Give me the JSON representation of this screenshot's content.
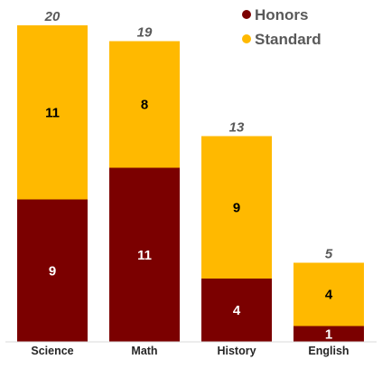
{
  "chart_data": {
    "type": "bar",
    "stacked": true,
    "categories": [
      "Science",
      "Math",
      "History",
      "English"
    ],
    "series": [
      {
        "name": "Honors",
        "values": [
          9,
          11,
          4,
          1
        ],
        "color": "#7B0000",
        "label_color": "#ffffff"
      },
      {
        "name": "Standard",
        "values": [
          11,
          8,
          9,
          4
        ],
        "color": "#FFB900",
        "label_color": "#000000"
      }
    ],
    "totals": [
      20,
      19,
      13,
      5
    ],
    "ylim": [
      0,
      20
    ],
    "grid": false,
    "legend_position": "top-right"
  }
}
